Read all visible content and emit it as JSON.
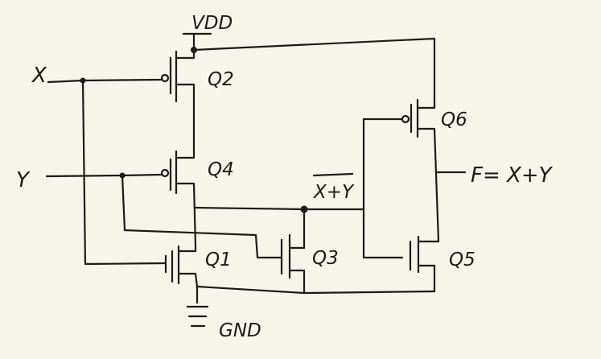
{
  "labels": {
    "vdd": "VDD",
    "gnd": "GND",
    "input_x": "X",
    "input_y": "Y",
    "nor_out": "X+Y",
    "output": "F= X+Y"
  },
  "transistors": {
    "q1": "Q1",
    "q2": "Q2",
    "q3": "Q3",
    "q4": "Q4",
    "q5": "Q5",
    "q6": "Q6"
  }
}
